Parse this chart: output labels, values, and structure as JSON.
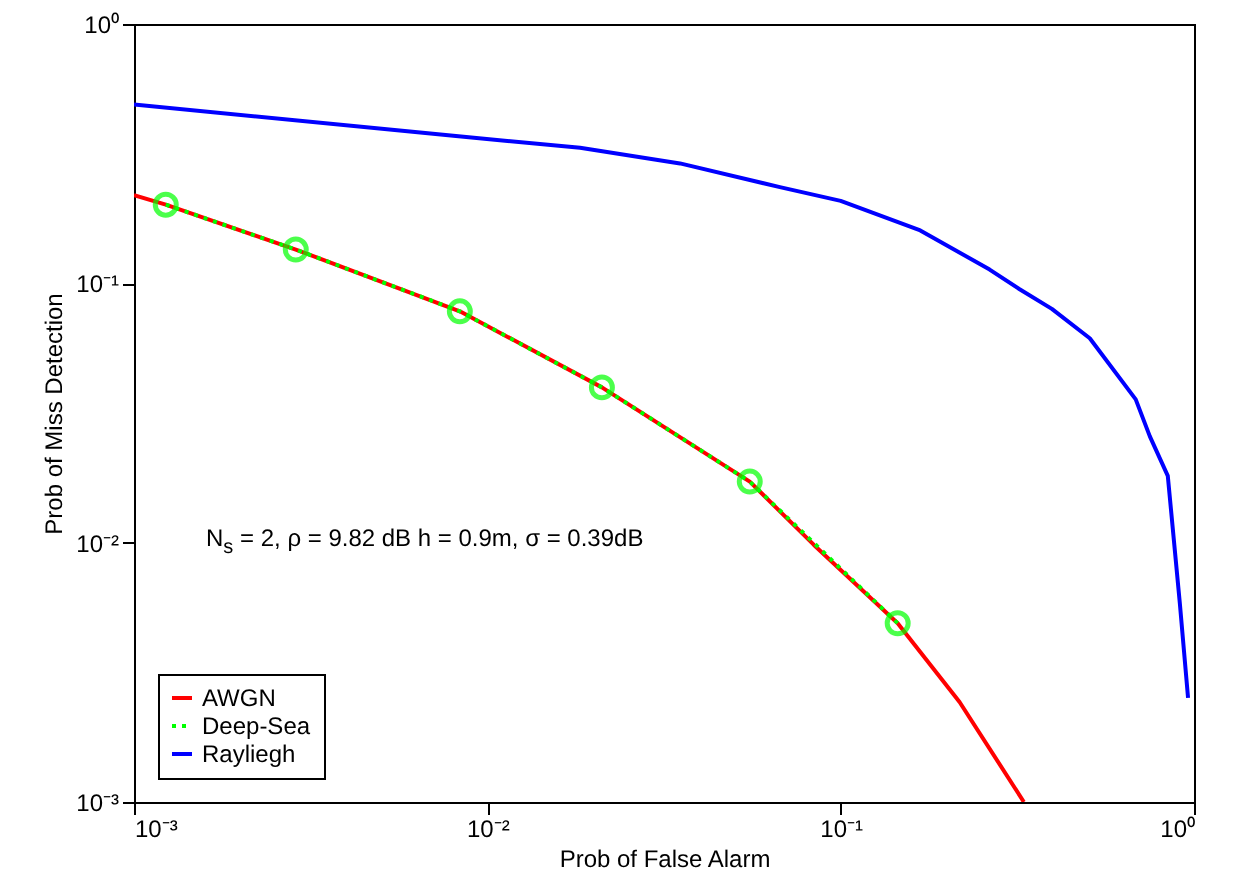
{
  "chart_data": {
    "type": "line",
    "xlabel": "Prob of False Alarm",
    "ylabel": "Prob of Miss Detection",
    "log": "xy",
    "legend": "bottom left",
    "xlim": [
      0.001,
      1
    ],
    "ylim": [
      0.001,
      1
    ],
    "xticks": [
      {
        "value": 0.001,
        "label": "10⁻³"
      },
      {
        "value": 0.01,
        "label": "10⁻²"
      },
      {
        "value": 0.1,
        "label": "10⁻¹"
      },
      {
        "value": 1,
        "label": "10⁰"
      }
    ],
    "yticks": [
      {
        "value": 0.001,
        "label": "10⁻³"
      },
      {
        "value": 0.01,
        "label": "10⁻²"
      },
      {
        "value": 0.1,
        "label": "10⁻¹"
      },
      {
        "value": 1,
        "label": "10⁰"
      }
    ],
    "annotations": [
      "N$_{s}$ = 2, ρ  = 9.82 dB h = 0.9m, σ = 0.39dB"
    ],
    "series": [
      {
        "name": "AWGN",
        "color": "#ff0000",
        "line_style": "solid",
        "marker": "none",
        "x": [
          0.001,
          0.00123,
          0.00287,
          0.00836,
          0.0211,
          0.0553,
          0.084,
          0.145,
          0.217,
          0.33
        ],
        "values": [
          0.219,
          0.201,
          0.135,
          0.078,
          0.0397,
          0.0172,
          0.0098,
          0.00489,
          0.00243,
          0.001
        ]
      },
      {
        "name": "Deep-Sea",
        "color": "#00ff00",
        "line_style": "dotted",
        "marker": "circle",
        "x": [
          0.00123,
          0.00287,
          0.00836,
          0.0211,
          0.0553,
          0.145
        ],
        "values": [
          0.201,
          0.135,
          0.078,
          0.0397,
          0.0172,
          0.00489
        ]
      },
      {
        "name": "Rayliegh",
        "color": "#0000ff",
        "line_style": "solid",
        "marker": "none",
        "x": [
          0.001,
          0.00815,
          0.0183,
          0.0351,
          0.0673,
          0.1,
          0.168,
          0.264,
          0.321,
          0.396,
          0.507,
          0.684,
          0.75,
          0.843,
          0.912,
          0.962
        ],
        "values": [
          0.489,
          0.37,
          0.333,
          0.29,
          0.235,
          0.208,
          0.16,
          0.113,
          0.0949,
          0.0797,
          0.0614,
          0.0357,
          0.0257,
          0.0181,
          0.00582,
          0.00252
        ]
      }
    ]
  }
}
